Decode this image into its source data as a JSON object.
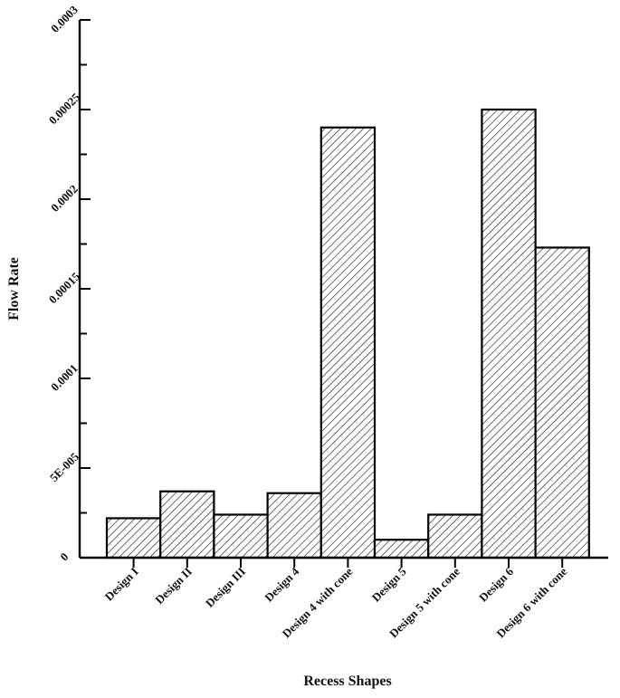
{
  "chart_data": {
    "type": "bar",
    "title": "",
    "xlabel": "Recess Shapes",
    "ylabel": "Flow Rate",
    "categories": [
      "Design I",
      "Design II",
      "Design III",
      "Design 4",
      "Design 4 with cone",
      "Design 5",
      "Design 5 with cone",
      "Design 6",
      "Design 6 with cone"
    ],
    "values": [
      2.2e-05,
      3.7e-05,
      2.4e-05,
      3.6e-05,
      0.00024,
      1e-05,
      2.4e-05,
      0.00025,
      0.000173
    ],
    "ylim": [
      0,
      0.0003
    ],
    "yticks": [
      0,
      5e-05,
      0.0001,
      0.00015,
      0.0002,
      0.00025,
      0.0003
    ],
    "ytick_labels": [
      "0",
      "5E-005",
      "0.0001",
      "0.00015",
      "0.0002",
      "0.00025",
      "0.0003"
    ],
    "grid": false,
    "legend": false,
    "bar_pattern": "diagonal-hatch",
    "colors": {
      "bar_fill": "#ffffff",
      "hatch": "#222222",
      "stroke": "#000000"
    }
  }
}
